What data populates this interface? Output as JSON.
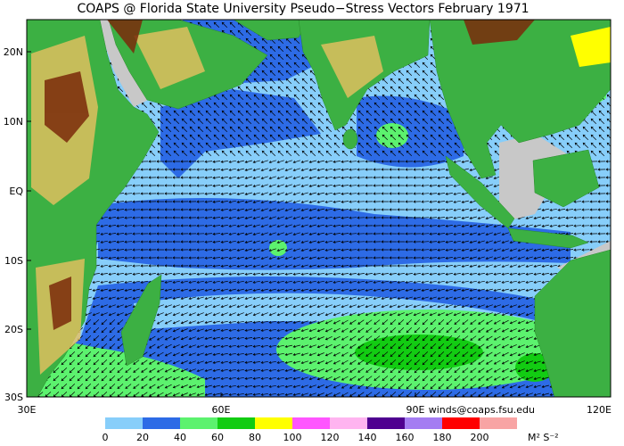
{
  "header": {
    "title": "COAPS @ Florida State University Pseudo−Stress Vectors  February 1971"
  },
  "map": {
    "lat_labels": [
      "20N",
      "10N",
      "EQ",
      "10S",
      "20S",
      "30S"
    ],
    "lon_labels": [
      "30E",
      "60E",
      "90E",
      "120E"
    ],
    "credit": "winds@coaps.fsu.edu"
  },
  "legend": {
    "labels": [
      0,
      20,
      40,
      60,
      80,
      100,
      120,
      140,
      160,
      180,
      200
    ],
    "colors": [
      "#87cefa",
      "#2d6be6",
      "#5cf26e",
      "#12cc12",
      "#ffff00",
      "#ff55ff",
      "#ffb4f0",
      "#4f0090",
      "#a47cf2",
      "#ff0000",
      "#f8a4a4"
    ],
    "unit": "M² S⁻²"
  }
}
